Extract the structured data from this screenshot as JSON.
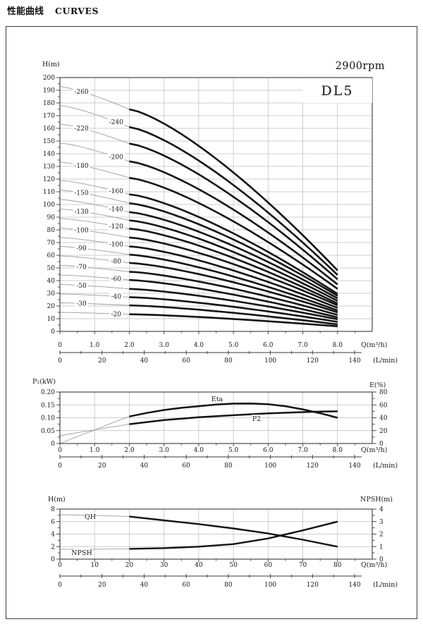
{
  "page": {
    "title_cn": "性能曲线",
    "title_en": "CURVES"
  },
  "chart_data": {
    "figure": "pump performance curves",
    "speed": "2900rpm",
    "model": "DL5",
    "colors": {
      "bold_curve": "#141414",
      "thin_curve": "#9c9c9c",
      "grid": "#bdbdbd",
      "axis": "#3a3a3a"
    },
    "charts": [
      {
        "id": "head",
        "type": "line",
        "ylabel": "H(m)",
        "xlabel": "Q(m³/h)",
        "x2label": "(L/min)",
        "ylim": [
          0,
          200
        ],
        "xlim": [
          0,
          9
        ],
        "y_tick_step": 10,
        "x_tick_labels": [
          "0",
          "1.0",
          "2.0",
          "3.0",
          "4.0",
          "5.0",
          "6.0",
          "7.0",
          "8.0"
        ],
        "lmin_tick_labels": [
          "0",
          "20",
          "40",
          "60",
          "80",
          "100",
          "120",
          "140"
        ],
        "bold_range_q": [
          2,
          8
        ],
        "curves": [
          {
            "label": "-260",
            "side": "left",
            "q": [
              0,
              2,
              8
            ],
            "h": [
              193,
              175,
              48
            ]
          },
          {
            "label": "-240",
            "side": "right",
            "q": [
              0,
              2,
              8
            ],
            "h": [
              178,
              161,
              44.5
            ]
          },
          {
            "label": "-220",
            "side": "left",
            "q": [
              0,
              2,
              8
            ],
            "h": [
              163.5,
              148,
              41
            ]
          },
          {
            "label": "-200",
            "side": "right",
            "q": [
              0,
              2,
              8
            ],
            "h": [
              148.5,
              134,
              37
            ]
          },
          {
            "label": "-180",
            "side": "left",
            "q": [
              0,
              2,
              8
            ],
            "h": [
              133.5,
              121,
              33.5
            ]
          },
          {
            "label": "-160",
            "side": "right",
            "q": [
              0,
              2,
              8
            ],
            "h": [
              119,
              108,
              29.5
            ]
          },
          {
            "label": "-150",
            "side": "left",
            "q": [
              0,
              2,
              8
            ],
            "h": [
              111.5,
              101,
              28
            ]
          },
          {
            "label": "-140",
            "side": "right",
            "q": [
              0,
              2,
              8
            ],
            "h": [
              104,
              94,
              26
            ]
          },
          {
            "label": "-130",
            "side": "left",
            "q": [
              0,
              2,
              8
            ],
            "h": [
              96.5,
              87.5,
              24
            ]
          },
          {
            "label": "-120",
            "side": "right",
            "q": [
              0,
              2,
              8
            ],
            "h": [
              89,
              81,
              22
            ]
          },
          {
            "label": "-100",
            "side": "left",
            "q": [
              0,
              2,
              8
            ],
            "h": [
              81.5,
              74,
              20.5
            ]
          },
          {
            "label": "-100",
            "side": "right",
            "q": [
              0,
              2,
              8
            ],
            "h": [
              74,
              67,
              18.5
            ]
          },
          {
            "label": "-90",
            "side": "left",
            "q": [
              0,
              2,
              8
            ],
            "h": [
              67,
              60.5,
              16.5
            ]
          },
          {
            "label": "-80",
            "side": "right",
            "q": [
              0,
              2,
              8
            ],
            "h": [
              59.5,
              54,
              15
            ]
          },
          {
            "label": "-70",
            "side": "left",
            "q": [
              0,
              2,
              8
            ],
            "h": [
              52,
              47,
              13
            ]
          },
          {
            "label": "-60",
            "side": "right",
            "q": [
              0,
              2,
              8
            ],
            "h": [
              44.5,
              40.5,
              11
            ]
          },
          {
            "label": "-50",
            "side": "left",
            "q": [
              0,
              2,
              8
            ],
            "h": [
              37,
              33.5,
              9.5
            ]
          },
          {
            "label": "-40",
            "side": "right",
            "q": [
              0,
              2,
              8
            ],
            "h": [
              29.5,
              27,
              7.5
            ]
          },
          {
            "label": "-30",
            "side": "left",
            "q": [
              0,
              2,
              8
            ],
            "h": [
              22.5,
              20.5,
              5.5
            ]
          },
          {
            "label": "-20",
            "side": "right",
            "q": [
              0,
              2,
              8
            ],
            "h": [
              15,
              13.5,
              4
            ]
          }
        ]
      },
      {
        "id": "power",
        "type": "line",
        "ylabel": "P₂(kW)",
        "y2label": "E(%)",
        "xlabel": "Q(m³/h)",
        "x2label": "(L/min)",
        "ylim": [
          0,
          0.2
        ],
        "y2lim": [
          0,
          80
        ],
        "xlim": [
          0,
          9
        ],
        "y_tick_labels": [
          "0",
          "0.05",
          "0.10",
          "0.15",
          "0.20"
        ],
        "y2_tick_labels": [
          "0",
          "20",
          "40",
          "60",
          "80"
        ],
        "x_tick_labels": [
          "0",
          "1.0",
          "2.0",
          "3.0",
          "4.0",
          "5.0",
          "6.0",
          "7.0",
          "8.0"
        ],
        "lmin_tick_labels": [
          "0",
          "20",
          "40",
          "60",
          "80",
          "100",
          "120",
          "140"
        ],
        "series": [
          {
            "name": "Eta",
            "unit": "%",
            "axis": "right",
            "thin": [
              [
                0,
                0
              ],
              [
                0.5,
                11
              ],
              [
                1,
                21
              ],
              [
                1.5,
                32
              ],
              [
                2,
                42
              ]
            ],
            "bold": [
              [
                2,
                42
              ],
              [
                2.5,
                47.5
              ],
              [
                3,
                52
              ],
              [
                3.5,
                55.5
              ],
              [
                4,
                58
              ],
              [
                4.5,
                60.5
              ],
              [
                5,
                62
              ],
              [
                5.5,
                62.3
              ],
              [
                6,
                61
              ],
              [
                6.5,
                58
              ],
              [
                7,
                53
              ],
              [
                7.5,
                47
              ],
              [
                8,
                40
              ]
            ]
          },
          {
            "name": "P2",
            "unit": "kW",
            "axis": "left",
            "thin": [
              [
                0,
                0.03
              ],
              [
                0.5,
                0.042
              ],
              [
                1,
                0.053
              ],
              [
                1.5,
                0.064
              ],
              [
                2,
                0.075
              ]
            ],
            "bold": [
              [
                2,
                0.075
              ],
              [
                3,
                0.091
              ],
              [
                4,
                0.102
              ],
              [
                5,
                0.11
              ],
              [
                6,
                0.117
              ],
              [
                7,
                0.122
              ],
              [
                7.5,
                0.124
              ],
              [
                8,
                0.125
              ]
            ]
          }
        ]
      },
      {
        "id": "qh_npsh",
        "type": "line",
        "ylabel": "H(m)",
        "y2label": "NPSH(m)",
        "xlabel": "Q(m³/h)",
        "x2label": "(L/min)",
        "ylim": [
          0,
          8
        ],
        "y2lim": [
          0,
          4
        ],
        "xlim": [
          0,
          90
        ],
        "x_tick_labels": [
          "0",
          "10",
          "20",
          "30",
          "40",
          "50",
          "60",
          "70",
          "80"
        ],
        "lmin_tick_labels": [
          "0",
          "20",
          "40",
          "60",
          "80",
          "100",
          "120",
          "140"
        ],
        "series": [
          {
            "name": "QH",
            "unit": "m",
            "axis": "left",
            "thin": [
              [
                0,
                7.1
              ],
              [
                10,
                7.0
              ],
              [
                20,
                6.8
              ]
            ],
            "bold": [
              [
                20,
                6.8
              ],
              [
                30,
                6.2
              ],
              [
                40,
                5.6
              ],
              [
                50,
                4.9
              ],
              [
                60,
                4.1
              ],
              [
                70,
                3.1
              ],
              [
                80,
                2.0
              ]
            ]
          },
          {
            "name": "NPSH",
            "unit": "m",
            "axis": "right",
            "thin": [
              [
                0,
                0.8
              ],
              [
                10,
                0.8
              ],
              [
                20,
                0.82
              ]
            ],
            "bold": [
              [
                20,
                0.82
              ],
              [
                30,
                0.88
              ],
              [
                40,
                1.0
              ],
              [
                50,
                1.2
              ],
              [
                60,
                1.65
              ],
              [
                70,
                2.3
              ],
              [
                80,
                3.0
              ]
            ]
          }
        ]
      }
    ]
  }
}
